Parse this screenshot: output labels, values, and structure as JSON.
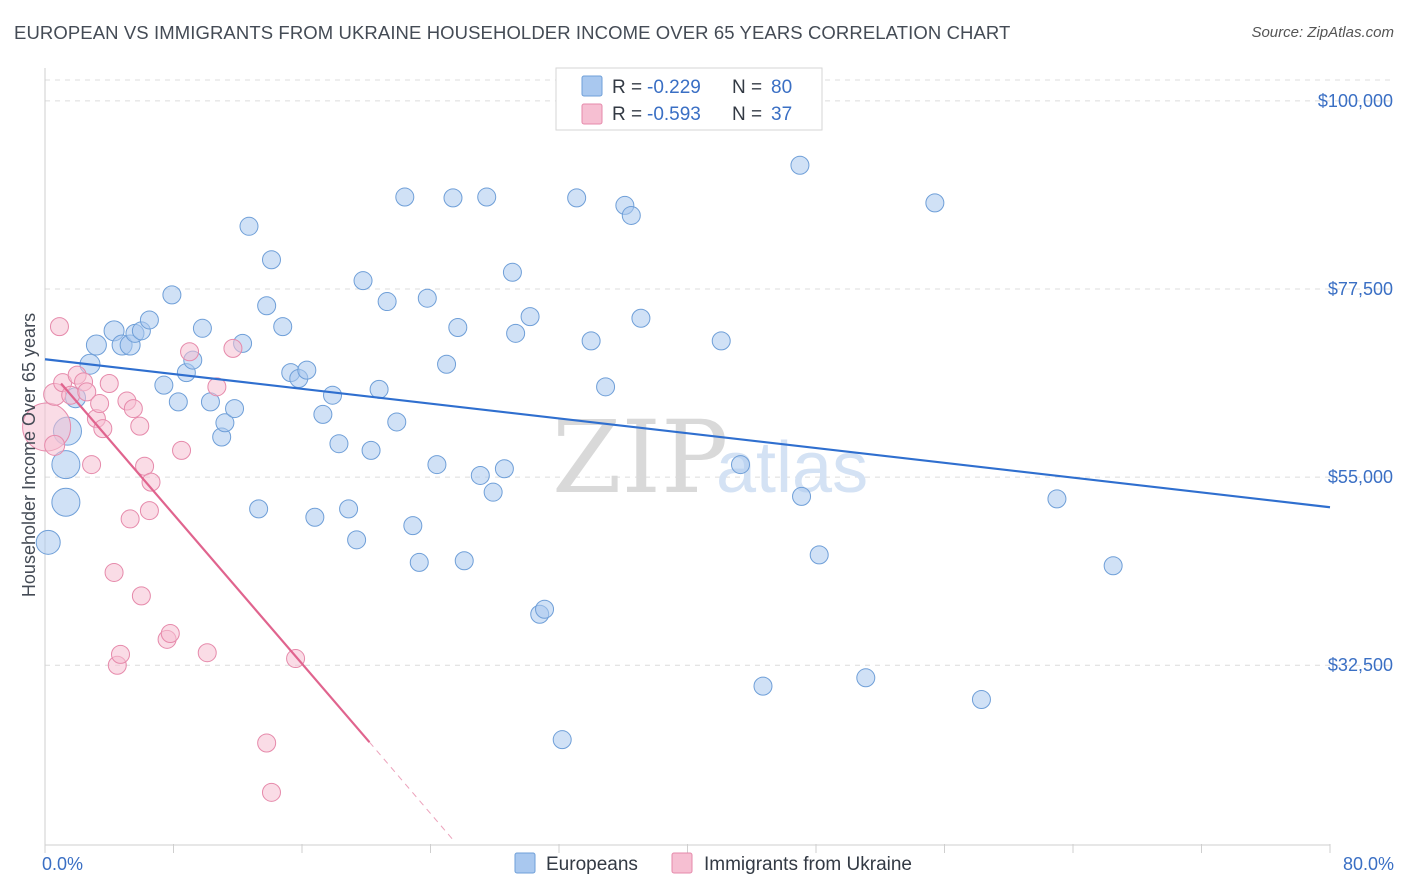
{
  "title": "EUROPEAN VS IMMIGRANTS FROM UKRAINE HOUSEHOLDER INCOME OVER 65 YEARS CORRELATION CHART",
  "source": "Source: ZipAtlas.com",
  "watermark": {
    "zip": "ZIP",
    "atlas": "atlas"
  },
  "colors": {
    "blue": "#a9c8ef",
    "blue_stroke": "#6f9fd8",
    "blue_line": "#2f6fcf",
    "pink": "#f6bfd2",
    "pink_stroke": "#e68aab",
    "pink_line": "#e0648e",
    "tick_text": "#3a6fc4",
    "grid": "#dcdcdc"
  },
  "legend": {
    "rows": [
      {
        "r_label": "R = ",
        "r_value": "-0.229",
        "n_label": "N = ",
        "n_value": "80"
      },
      {
        "r_label": "R = ",
        "r_value": "-0.593",
        "n_label": "N = ",
        "n_value": "37"
      }
    ]
  },
  "chart_data": {
    "type": "scatter",
    "title": "EUROPEAN VS IMMIGRANTS FROM UKRAINE HOUSEHOLDER INCOME OVER 65 YEARS CORRELATION CHART",
    "xlabel": "",
    "ylabel": "Householder Income Over 65 years",
    "xlim": [
      0,
      80
    ],
    "ylim": [
      11000,
      102500
    ],
    "x_tick_labels": [
      "0.0%",
      "80.0%"
    ],
    "y_ticks": [
      32500,
      55000,
      77500,
      100000
    ],
    "y_tick_labels": [
      "$32,500",
      "$55,000",
      "$77,500",
      "$100,000"
    ],
    "grid": true,
    "legend_position": "top-center",
    "series": [
      {
        "name": "Europeans",
        "color": "#a9c8ef",
        "r": "-0.229",
        "n": "80",
        "trend": {
          "x": [
            0,
            80
          ],
          "y": [
            69100,
            51400
          ]
        },
        "points": [
          [
            0.2,
            47200,
            12
          ],
          [
            1.3,
            52000,
            14
          ],
          [
            1.3,
            56500,
            14
          ],
          [
            1.4,
            60500,
            14
          ],
          [
            1.9,
            64500,
            10
          ],
          [
            2.8,
            68500,
            10
          ],
          [
            3.2,
            70800,
            10
          ],
          [
            4.3,
            72500,
            10
          ],
          [
            4.8,
            70800,
            10
          ],
          [
            5.3,
            70800,
            10
          ],
          [
            5.6,
            72200,
            9
          ],
          [
            6.0,
            72500,
            9
          ],
          [
            6.5,
            73800,
            9
          ],
          [
            7.4,
            66000,
            9
          ],
          [
            7.9,
            76800,
            9
          ],
          [
            8.3,
            64000,
            9
          ],
          [
            8.8,
            67500,
            9
          ],
          [
            9.2,
            69000,
            9
          ],
          [
            9.8,
            72800,
            9
          ],
          [
            10.3,
            64000,
            9
          ],
          [
            11.0,
            59800,
            9
          ],
          [
            11.2,
            61500,
            9
          ],
          [
            11.8,
            63200,
            9
          ],
          [
            12.3,
            71000,
            9
          ],
          [
            12.7,
            85000,
            9
          ],
          [
            13.3,
            51200,
            9
          ],
          [
            13.8,
            75500,
            9
          ],
          [
            14.1,
            81000,
            9
          ],
          [
            14.8,
            73000,
            9
          ],
          [
            15.3,
            67500,
            9
          ],
          [
            15.8,
            66800,
            9
          ],
          [
            16.3,
            67800,
            9
          ],
          [
            16.8,
            50200,
            9
          ],
          [
            17.3,
            62500,
            9
          ],
          [
            17.9,
            64800,
            9
          ],
          [
            18.3,
            59000,
            9
          ],
          [
            18.9,
            51200,
            9
          ],
          [
            19.4,
            47500,
            9
          ],
          [
            19.8,
            78500,
            9
          ],
          [
            20.3,
            58200,
            9
          ],
          [
            20.8,
            65500,
            9
          ],
          [
            21.3,
            76000,
            9
          ],
          [
            21.9,
            61600,
            9
          ],
          [
            22.4,
            88500,
            9
          ],
          [
            22.9,
            49200,
            9
          ],
          [
            23.3,
            44800,
            9
          ],
          [
            23.8,
            76400,
            9
          ],
          [
            24.4,
            56500,
            9
          ],
          [
            25.0,
            68500,
            9
          ],
          [
            25.4,
            88400,
            9
          ],
          [
            25.7,
            72900,
            9
          ],
          [
            26.1,
            45000,
            9
          ],
          [
            27.1,
            55200,
            9
          ],
          [
            27.5,
            88500,
            9
          ],
          [
            27.9,
            53200,
            9
          ],
          [
            28.6,
            56000,
            9
          ],
          [
            29.1,
            79500,
            9
          ],
          [
            29.3,
            72200,
            9
          ],
          [
            30.2,
            74200,
            9
          ],
          [
            30.8,
            38600,
            9
          ],
          [
            31.1,
            39200,
            9
          ],
          [
            32.2,
            23600,
            9
          ],
          [
            33.1,
            88400,
            9
          ],
          [
            34.0,
            71300,
            9
          ],
          [
            34.9,
            65800,
            9
          ],
          [
            36.1,
            87500,
            9
          ],
          [
            36.5,
            86300,
            9
          ],
          [
            37.1,
            74000,
            9
          ],
          [
            42.1,
            71300,
            9
          ],
          [
            43.3,
            56500,
            9
          ],
          [
            44.7,
            30000,
            9
          ],
          [
            47.0,
            92300,
            9
          ],
          [
            47.1,
            52700,
            9
          ],
          [
            48.2,
            45700,
            9
          ],
          [
            51.1,
            31000,
            9
          ],
          [
            55.4,
            87800,
            9
          ],
          [
            58.3,
            28400,
            9
          ],
          [
            63.0,
            52400,
            9
          ],
          [
            66.5,
            44400,
            9
          ]
        ]
      },
      {
        "name": "Immigrants from Ukraine",
        "color": "#f6bfd2",
        "r": "-0.593",
        "n": "37",
        "trend": {
          "x": [
            1.0,
            20.2,
            25.5
          ],
          "y": [
            66200,
            23300,
            11400
          ]
        },
        "points": [
          [
            0.1,
            61000,
            24
          ],
          [
            0.6,
            64900,
            11
          ],
          [
            0.6,
            58800,
            10
          ],
          [
            0.9,
            73000,
            9
          ],
          [
            1.1,
            66300,
            9
          ],
          [
            1.6,
            64800,
            9
          ],
          [
            2.0,
            67200,
            9
          ],
          [
            2.4,
            66400,
            9
          ],
          [
            2.6,
            65200,
            9
          ],
          [
            2.9,
            56500,
            9
          ],
          [
            3.2,
            62000,
            9
          ],
          [
            3.4,
            63800,
            9
          ],
          [
            3.6,
            60800,
            9
          ],
          [
            4.0,
            66200,
            9
          ],
          [
            4.3,
            43600,
            9
          ],
          [
            4.5,
            32500,
            9
          ],
          [
            4.7,
            33800,
            9
          ],
          [
            5.1,
            64100,
            9
          ],
          [
            5.3,
            50000,
            9
          ],
          [
            5.5,
            63200,
            9
          ],
          [
            5.9,
            61100,
            9
          ],
          [
            6.0,
            40800,
            9
          ],
          [
            6.2,
            56300,
            9
          ],
          [
            6.5,
            51000,
            9
          ],
          [
            6.6,
            54400,
            9
          ],
          [
            7.6,
            35600,
            9
          ],
          [
            7.8,
            36300,
            9
          ],
          [
            8.5,
            58200,
            9
          ],
          [
            9.0,
            70000,
            9
          ],
          [
            10.1,
            34000,
            9
          ],
          [
            10.7,
            65800,
            9
          ],
          [
            11.7,
            70400,
            9
          ],
          [
            13.8,
            23200,
            9
          ],
          [
            14.1,
            17300,
            9
          ],
          [
            15.6,
            33300,
            9
          ]
        ]
      }
    ]
  }
}
